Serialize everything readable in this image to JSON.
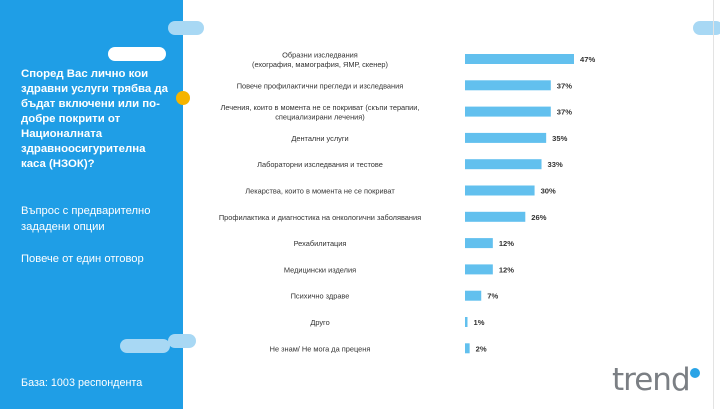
{
  "panel": {
    "question": "Според Вас лично кои здравни услуги трябва да бъдат включени или по-добре покрити от Националната здравноосигурителна каса (НЗОК)?",
    "note1": "Въпрос с предварително зададени опции",
    "note2": "Повече от един отговор",
    "base": "База: 1003 респондента"
  },
  "logo": {
    "text": "trend"
  },
  "colors": {
    "panel": "#1f9ee6",
    "bar": "#62c0ee",
    "accent_dot": "#f5b400",
    "pill_light": "#a8d8f4"
  },
  "chart_data": {
    "type": "bar",
    "orientation": "horizontal",
    "categories": [
      "Образни изследвания\n(ехография, мамография, ЯМР, скенер)",
      "Повече профилактични прегледи и изследвания",
      "Лечения, които в момента не се покриват (скъпи терапии,\nспециализирани лечения)",
      "Дентални услуги",
      "Лабораторни изследвания и тестове",
      "Лекарства, които в момента не се покриват",
      "Профилактика и диагностика на онкологични заболявания",
      "Рехабилитация",
      "Медицински изделия",
      "Психично здраве",
      "Друго",
      "Не знам/ Не мога да преценя"
    ],
    "values": [
      47,
      37,
      37,
      35,
      33,
      30,
      26,
      12,
      12,
      7,
      1,
      2
    ],
    "value_labels": [
      "47%",
      "37%",
      "37%",
      "35%",
      "33%",
      "30%",
      "26%",
      "12%",
      "12%",
      "7%",
      "1%",
      "2%"
    ],
    "xlim": [
      0,
      47
    ],
    "grid": false,
    "legend": "none"
  }
}
